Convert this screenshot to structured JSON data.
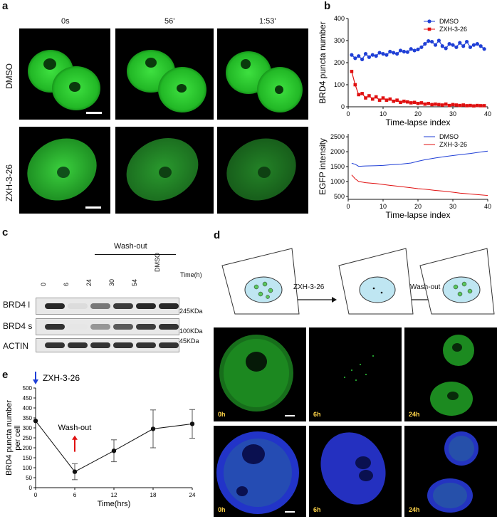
{
  "panels": {
    "a": {
      "letter": "a",
      "times": [
        "0s",
        "56'",
        "1:53'"
      ],
      "rows": [
        "DMSO",
        "ZXH-3-26"
      ]
    },
    "b": {
      "letter": "b",
      "top": {
        "ylabel": "BRD4 puncta number",
        "xlabel": "Time-lapse index",
        "yticks": [
          "0",
          "100",
          "200",
          "300",
          "400"
        ],
        "xticks": [
          "0",
          "10",
          "20",
          "30",
          "40"
        ],
        "legend": [
          "DMSO",
          "ZXH-3-26"
        ]
      },
      "bottom": {
        "ylabel": "EGFP intensity",
        "xlabel": "Time-lapse index",
        "yticks": [
          "500",
          "1000",
          "1500",
          "2000",
          "2500"
        ],
        "xticks": [
          "0",
          "10",
          "20",
          "30",
          "40"
        ],
        "legend": [
          "DMSO",
          "ZXH-3-26"
        ]
      }
    },
    "c": {
      "letter": "c",
      "washout": "Wash-out",
      "lanes": [
        "0",
        "6",
        "24",
        "30",
        "54",
        "DMSO"
      ],
      "time_unit": "Time(h)",
      "bands": [
        "BRD4 l",
        "BRD4 s",
        "ACTIN"
      ],
      "markers": [
        "245KDa",
        "100KDa",
        "45KDa"
      ],
      "band_intensity": {
        "BRD4 l": [
          0.95,
          0.05,
          0.55,
          0.85,
          0.95,
          0.95
        ],
        "BRD4 s": [
          0.9,
          0.0,
          0.4,
          0.7,
          0.85,
          0.9
        ],
        "ACTIN": [
          0.9,
          0.9,
          0.9,
          0.9,
          0.9,
          0.9
        ]
      }
    },
    "d": {
      "letter": "d",
      "arrow1": "ZXH-3-26",
      "arrow2": "Wash-out",
      "tags": [
        "0h",
        "6h",
        "24h"
      ]
    },
    "e": {
      "letter": "e",
      "drug": "ZXH-3-26",
      "washout": "Wash-out",
      "ylabel_line1": "BRD4 puncta number",
      "ylabel_line2": "per cell",
      "xlabel": "Time(hrs)",
      "yticks": [
        "0",
        "50",
        "100",
        "150",
        "200",
        "250",
        "300",
        "350",
        "400",
        "450",
        "500"
      ],
      "xticks": [
        "0",
        "6",
        "12",
        "18",
        "24"
      ]
    }
  },
  "colors": {
    "dmso": "#1f3fd6",
    "zxh": "#e01010",
    "green": "#2ecc3a",
    "blue_nuc": "#2430c8"
  },
  "chart_data": [
    {
      "type": "line",
      "xlabel": "Time-lapse index",
      "ylabel": "BRD4 puncta number",
      "xlim": [
        0,
        40
      ],
      "ylim": [
        0,
        400
      ],
      "legend_position": "top-right",
      "series": [
        {
          "name": "DMSO",
          "x": [
            1,
            2,
            3,
            4,
            5,
            6,
            7,
            8,
            9,
            10,
            11,
            12,
            13,
            14,
            15,
            16,
            17,
            18,
            19,
            20,
            21,
            22,
            23,
            24,
            25,
            26,
            27,
            28,
            29,
            30,
            31,
            32,
            33,
            34,
            35,
            36,
            37,
            38,
            39
          ],
          "values": [
            235,
            220,
            230,
            215,
            240,
            225,
            235,
            230,
            245,
            240,
            235,
            250,
            245,
            240,
            255,
            250,
            248,
            262,
            255,
            260,
            270,
            285,
            298,
            295,
            280,
            300,
            275,
            265,
            285,
            280,
            270,
            290,
            275,
            295,
            270,
            280,
            285,
            275,
            262
          ]
        },
        {
          "name": "ZXH-3-26",
          "x": [
            1,
            2,
            3,
            4,
            5,
            6,
            7,
            8,
            9,
            10,
            11,
            12,
            13,
            14,
            15,
            16,
            17,
            18,
            19,
            20,
            21,
            22,
            23,
            24,
            25,
            26,
            27,
            28,
            29,
            30,
            31,
            32,
            33,
            34,
            35,
            36,
            37,
            38,
            39
          ],
          "values": [
            160,
            100,
            55,
            60,
            40,
            50,
            35,
            45,
            30,
            40,
            30,
            35,
            25,
            30,
            20,
            25,
            22,
            18,
            20,
            15,
            18,
            12,
            15,
            10,
            12,
            10,
            8,
            12,
            6,
            10,
            8,
            6,
            8,
            5,
            6,
            4,
            6,
            5,
            5
          ]
        }
      ]
    },
    {
      "type": "line",
      "xlabel": "Time-lapse index",
      "ylabel": "EGFP intensity",
      "xlim": [
        0,
        40
      ],
      "ylim": [
        400,
        2600
      ],
      "legend_position": "top-right",
      "series": [
        {
          "name": "DMSO",
          "x": [
            1,
            2,
            3,
            5,
            8,
            10,
            12,
            15,
            18,
            20,
            22,
            25,
            28,
            30,
            32,
            35,
            38,
            40
          ],
          "values": [
            1610,
            1580,
            1510,
            1520,
            1530,
            1540,
            1560,
            1580,
            1620,
            1680,
            1730,
            1790,
            1840,
            1870,
            1900,
            1940,
            1990,
            2020
          ]
        },
        {
          "name": "ZXH-3-26",
          "x": [
            1,
            2,
            3,
            5,
            8,
            10,
            12,
            15,
            18,
            20,
            22,
            25,
            28,
            30,
            32,
            35,
            38,
            40
          ],
          "values": [
            1220,
            1090,
            1000,
            960,
            930,
            900,
            870,
            830,
            790,
            760,
            740,
            700,
            670,
            640,
            610,
            580,
            550,
            530
          ]
        }
      ]
    },
    {
      "type": "line",
      "xlabel": "Time(hrs)",
      "ylabel": "BRD4 puncta number per cell",
      "xlim": [
        0,
        24
      ],
      "ylim": [
        0,
        500
      ],
      "series": [
        {
          "x": [
            0,
            6,
            12,
            18,
            24
          ],
          "values": [
            335,
            80,
            185,
            295,
            320
          ],
          "errors": [
            0,
            40,
            55,
            95,
            72
          ]
        }
      ]
    }
  ]
}
